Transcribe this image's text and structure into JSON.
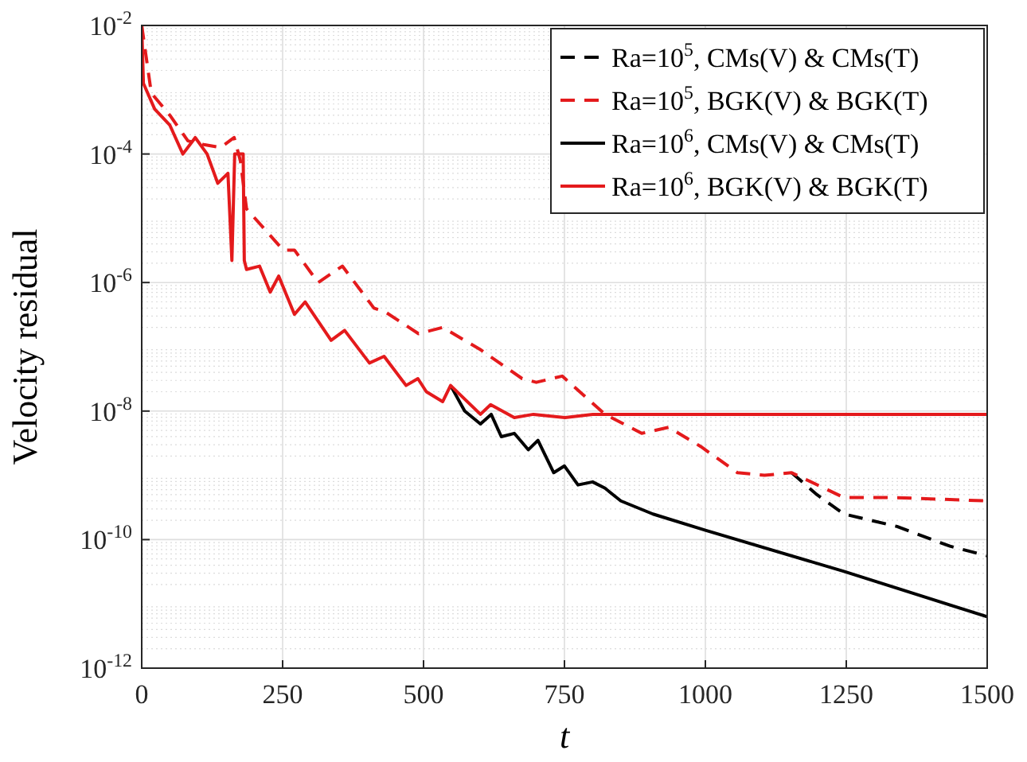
{
  "chart_data": {
    "type": "line",
    "xlabel": "t",
    "ylabel": "Velocity residual",
    "log": "y",
    "grid": true,
    "legend": "top right",
    "xlim": [
      0,
      1500
    ],
    "xticks": [
      0,
      250,
      500,
      750,
      1000,
      1250,
      1500
    ],
    "ylim": [
      1e-12,
      0.01
    ],
    "yticks": [
      {
        "value": 1e-12,
        "label": "10$^{-12}$"
      },
      {
        "value": 1e-10,
        "label": "10$^{-10}$"
      },
      {
        "value": 1e-08,
        "label": "10$^{-8}$"
      },
      {
        "value": 1e-06,
        "label": "10$^{-6}$"
      },
      {
        "value": 0.0001,
        "label": "10$^{-4}$"
      },
      {
        "value": 0.01,
        "label": "10$^{-2}$"
      }
    ],
    "series": [
      {
        "name": "Ra=10$^{5}$, CMs(V) & CMs(T)",
        "color": "#000000",
        "line_style": "dashed",
        "x": [
          1153,
          1198,
          1246,
          1340,
          1434,
          1500
        ],
        "values": [
          1.1e-09,
          5e-10,
          2.5e-10,
          1.6e-10,
          7.9e-11,
          5.6e-11
        ]
      },
      {
        "name": "Ra=10$^{5}$, BGK(V) & BGK(T)",
        "color": "#e41a1c",
        "line_style": "dashed",
        "x": [
          0,
          17,
          50,
          82,
          110,
          140,
          164,
          175,
          186,
          251,
          271,
          313,
          356,
          412,
          432,
          491,
          534,
          602,
          675,
          700,
          746,
          822,
          887,
          935,
          992,
          1057,
          1105,
          1153,
          1246,
          1340,
          1500
        ],
        "values": [
          0.01,
          0.00089,
          0.0004,
          0.00016,
          0.00014,
          0.000126,
          0.00018,
          7.9e-05,
          1.4e-05,
          3.2e-06,
          3.2e-06,
          1e-06,
          1.8e-06,
          4e-07,
          3.5e-07,
          1.6e-07,
          2e-07,
          8.9e-08,
          3.2e-08,
          2.8e-08,
          3.5e-08,
          8.9e-09,
          4.5e-09,
          5.6e-09,
          2.8e-09,
          1.1e-09,
          1e-09,
          1.1e-09,
          4.5e-10,
          4.5e-10,
          4e-10
        ]
      },
      {
        "name": "Ra=10$^{6}$, CMs(V) & CMs(T)",
        "color": "#000000",
        "line_style": "solid",
        "x": [
          548,
          573,
          601,
          620,
          638,
          661,
          686,
          703,
          731,
          750,
          774,
          800,
          822,
          850,
          907,
          1000,
          1246,
          1500
        ],
        "values": [
          2.5e-08,
          1e-08,
          6.3e-09,
          8.9e-09,
          4e-09,
          4.5e-09,
          2.5e-09,
          3.5e-09,
          1.1e-09,
          1.4e-09,
          7.1e-10,
          7.9e-10,
          6.3e-10,
          4e-10,
          2.5e-10,
          1.4e-10,
          3.2e-11,
          6.3e-12
        ]
      },
      {
        "name": "Ra=10$^{6}$, BGK(V) & BGK(T)",
        "color": "#e41a1c",
        "line_style": "solid",
        "x": [
          0,
          3,
          23,
          50,
          73,
          95,
          116,
          135,
          153,
          160,
          165,
          180,
          182,
          186,
          209,
          228,
          243,
          271,
          290,
          336,
          360,
          404,
          430,
          469,
          490,
          505,
          534,
          548,
          601,
          619,
          661,
          695,
          751,
          800,
          1500
        ],
        "values": [
          0.01,
          0.00126,
          0.0005,
          0.00028,
          0.0001,
          0.00018,
          0.0001,
          3.5e-05,
          5e-05,
          2.2e-06,
          0.0001,
          0.0001,
          2.2e-06,
          1.6e-06,
          1.8e-06,
          7.1e-07,
          1.26e-06,
          3.2e-07,
          5e-07,
          1.26e-07,
          1.8e-07,
          5.6e-08,
          7.1e-08,
          2.5e-08,
          3.2e-08,
          2e-08,
          1.4e-08,
          2.5e-08,
          8.9e-09,
          1.26e-08,
          7.9e-09,
          8.9e-09,
          7.9e-09,
          8.9e-09,
          8.9e-09
        ]
      }
    ]
  }
}
